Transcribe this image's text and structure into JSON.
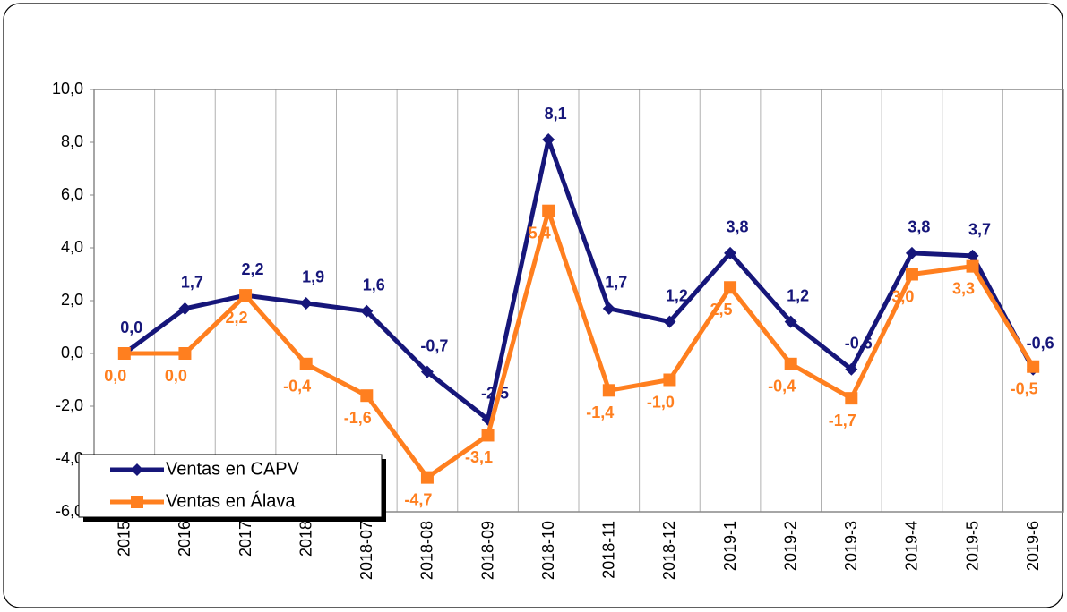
{
  "chart_data": {
    "type": "line",
    "categories": [
      "2015",
      "2016",
      "2017",
      "2018",
      "2018-07",
      "2018-08",
      "2018-09",
      "2018-10",
      "2018-11",
      "2018-12",
      "2019-1",
      "2019-2",
      "2019-3",
      "2019-4",
      "2019-5",
      "2019-6"
    ],
    "series": [
      {
        "name": "Ventas en CAPV",
        "color": "#16167a",
        "marker": "diamond",
        "values": [
          0.0,
          1.7,
          2.2,
          1.9,
          1.6,
          -0.7,
          -2.5,
          8.1,
          1.7,
          1.2,
          3.8,
          1.2,
          -0.6,
          3.8,
          3.7,
          -0.6
        ],
        "value_labels": [
          "0,0",
          "1,7",
          "2,2",
          "1,9",
          "1,6",
          "-0,7",
          "-2,5",
          "8,1",
          "1,7",
          "1,2",
          "3,8",
          "1,2",
          "-0,6",
          "3,8",
          "3,7",
          "-0,6"
        ]
      },
      {
        "name": "Ventas en Álava",
        "color": "#ff7f1f",
        "marker": "square",
        "values": [
          0.0,
          0.0,
          2.2,
          -0.4,
          -1.6,
          -4.7,
          -3.1,
          5.4,
          -1.4,
          -1.0,
          2.5,
          -0.4,
          -1.7,
          3.0,
          3.3,
          -0.5
        ],
        "value_labels": [
          "0,0",
          "0,0",
          "2,2",
          "-0,4",
          "-1,6",
          "-4,7",
          "-3,1",
          "5,4",
          "-1,4",
          "-1,0",
          "2,5",
          "-0,4",
          "-1,7",
          "3,0",
          "3,3",
          "-0,5"
        ]
      }
    ],
    "ylim": [
      -6,
      10
    ],
    "yticks": [
      {
        "value": -6,
        "label": "-6,0"
      },
      {
        "value": -4,
        "label": "-4,0"
      },
      {
        "value": -2,
        "label": "-2,0"
      },
      {
        "value": 0,
        "label": "0,0"
      },
      {
        "value": 2,
        "label": "2,0"
      },
      {
        "value": 4,
        "label": "4,0"
      },
      {
        "value": 6,
        "label": "6,0"
      },
      {
        "value": 8,
        "label": "8,0"
      },
      {
        "value": 10,
        "label": "10,0"
      }
    ],
    "grid": true,
    "legend": "bottom-left"
  }
}
